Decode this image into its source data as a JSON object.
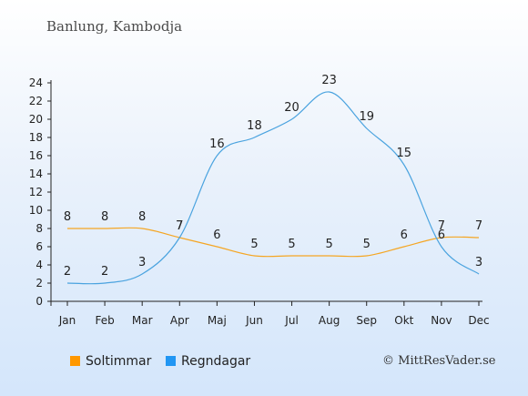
{
  "title": "Banlung, Kambodja",
  "legend": {
    "sun_label": "Soltimmar",
    "rain_label": "Regndagar"
  },
  "credit": "© MittResVader.se",
  "colors": {
    "sun": "#ff9800",
    "rain": "#2196f3",
    "sun_line": "#f5a623",
    "rain_line": "#4aa3df",
    "axis": "#222222"
  },
  "chart_data": {
    "type": "line",
    "categories": [
      "Jan",
      "Feb",
      "Mar",
      "Apr",
      "Maj",
      "Jun",
      "Jul",
      "Aug",
      "Sep",
      "Okt",
      "Nov",
      "Dec"
    ],
    "series": [
      {
        "name": "Soltimmar",
        "values": [
          8,
          8,
          8,
          7,
          6,
          5,
          5,
          5,
          5,
          6,
          7,
          7
        ]
      },
      {
        "name": "Regndagar",
        "values": [
          2,
          2,
          3,
          7,
          16,
          18,
          20,
          23,
          19,
          15,
          6,
          3
        ]
      }
    ],
    "ylim": [
      0,
      24
    ],
    "yticks": [
      0,
      2,
      4,
      6,
      8,
      10,
      12,
      14,
      16,
      18,
      20,
      22,
      24
    ],
    "grid": false,
    "legend_position": "bottom-left"
  }
}
